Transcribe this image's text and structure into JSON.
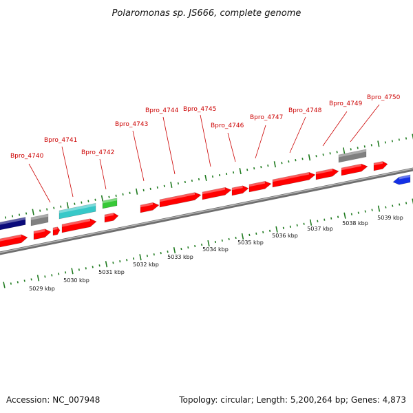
{
  "title": "Polaromonas sp. JS666, complete genome",
  "footer": {
    "accession_label": "Accession:",
    "accession": "NC_007948",
    "topology_label": "Topology:",
    "topology": "circular",
    "length_label": "Length:",
    "length": "5,200,264 bp",
    "genes_label": "Genes:",
    "genes": "4,873"
  },
  "colors": {
    "backbone": "#8c8c8c",
    "ruler": "#1e7a1e",
    "cds": "#ff0000",
    "trna": "#37c837",
    "rrna": "#37c8c8",
    "other": "#808080",
    "navy": "#0a0a7a",
    "blue": "#1430e6",
    "label": "#cc0000"
  },
  "ticks": [
    {
      "label": "5029 kbp",
      "kbp": 5029
    },
    {
      "label": "5030 kbp",
      "kbp": 5030
    },
    {
      "label": "5031 kbp",
      "kbp": 5031
    },
    {
      "label": "5032 kbp",
      "kbp": 5032
    },
    {
      "label": "5033 kbp",
      "kbp": 5033
    },
    {
      "label": "5034 kbp",
      "kbp": 5034
    },
    {
      "label": "5035 kbp",
      "kbp": 5035
    },
    {
      "label": "5036 kbp",
      "kbp": 5036
    },
    {
      "label": "5037 kbp",
      "kbp": 5037
    },
    {
      "label": "5038 kbp",
      "kbp": 5038
    },
    {
      "label": "5039 kbp",
      "kbp": 5039
    }
  ],
  "gene_labels": [
    "Bpro_4740",
    "Bpro_4741",
    "Bpro_4742",
    "Bpro_4743",
    "Bpro_4744",
    "Bpro_4745",
    "Bpro_4746",
    "Bpro_4747",
    "Bpro_4748",
    "Bpro_4749",
    "Bpro_4750"
  ]
}
